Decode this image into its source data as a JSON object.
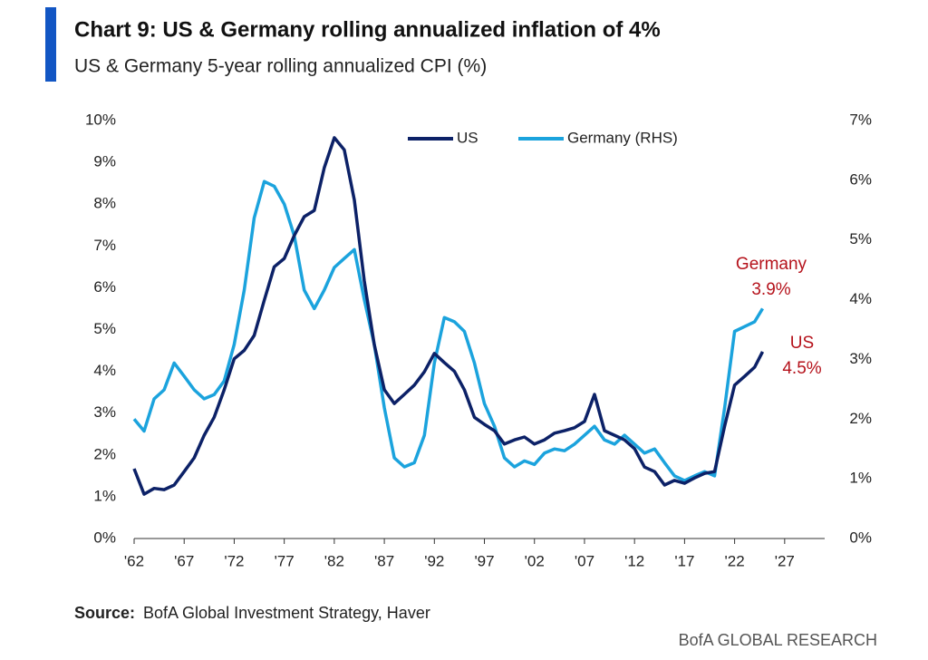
{
  "chart_data": {
    "type": "line",
    "title": "Chart 9: US & Germany rolling annualized inflation of 4%",
    "subtitle": "US & Germany 5-year rolling annualized CPI (%)",
    "source_label": "Source:",
    "source": "BofA Global Investment Strategy, Haver",
    "footer": "BofA GLOBAL RESEARCH",
    "x": [
      1962,
      1963,
      1964,
      1965,
      1966,
      1967,
      1968,
      1969,
      1970,
      1971,
      1972,
      1973,
      1974,
      1975,
      1976,
      1977,
      1978,
      1979,
      1980,
      1981,
      1982,
      1983,
      1984,
      1985,
      1986,
      1987,
      1988,
      1989,
      1990,
      1991,
      1992,
      1993,
      1994,
      1995,
      1996,
      1997,
      1998,
      1999,
      2000,
      2001,
      2002,
      2003,
      2004,
      2005,
      2006,
      2007,
      2008,
      2009,
      2010,
      2011,
      2012,
      2013,
      2014,
      2015,
      2016,
      2017,
      2018,
      2019,
      2020,
      2021,
      2022,
      2023,
      2024,
      2024.8
    ],
    "series": [
      {
        "name": "US",
        "color": "#0c2167",
        "axis": "y",
        "values": [
          1.67,
          1.06,
          1.2,
          1.17,
          1.28,
          1.6,
          1.93,
          2.47,
          2.9,
          3.56,
          4.3,
          4.5,
          4.86,
          5.7,
          6.5,
          6.7,
          7.25,
          7.7,
          7.85,
          8.87,
          9.59,
          9.3,
          8.1,
          6.16,
          4.64,
          3.56,
          3.23,
          3.45,
          3.67,
          3.99,
          4.43,
          4.21,
          4.0,
          3.56,
          2.9,
          2.73,
          2.58,
          2.26,
          2.36,
          2.43,
          2.26,
          2.36,
          2.52,
          2.58,
          2.65,
          2.8,
          3.45,
          2.58,
          2.47,
          2.36,
          2.15,
          1.71,
          1.6,
          1.28,
          1.39,
          1.32,
          1.45,
          1.56,
          1.6,
          2.69,
          3.67,
          3.88,
          4.1,
          4.47
        ]
      },
      {
        "name": "Germany (RHS)",
        "color": "#1ba3dd",
        "axis": "y2",
        "values": [
          2.0,
          1.8,
          2.34,
          2.49,
          2.94,
          2.72,
          2.49,
          2.34,
          2.41,
          2.64,
          3.25,
          4.16,
          5.37,
          5.98,
          5.9,
          5.6,
          5.07,
          4.16,
          3.85,
          4.16,
          4.54,
          4.69,
          4.84,
          4.0,
          3.25,
          2.19,
          1.35,
          1.2,
          1.27,
          1.73,
          2.94,
          3.7,
          3.63,
          3.47,
          2.94,
          2.26,
          1.88,
          1.35,
          1.2,
          1.3,
          1.24,
          1.43,
          1.5,
          1.47,
          1.58,
          1.73,
          1.88,
          1.65,
          1.58,
          1.73,
          1.58,
          1.43,
          1.5,
          1.27,
          1.05,
          0.97,
          1.05,
          1.12,
          1.05,
          2.19,
          3.47,
          3.55,
          3.63,
          3.85
        ]
      }
    ],
    "annotations": [
      {
        "lines": [
          "Germany",
          "3.9%"
        ],
        "color": "#b5121b"
      },
      {
        "lines": [
          "US",
          "4.5%"
        ],
        "color": "#b5121b"
      }
    ],
    "xlim": [
      1962,
      2031
    ],
    "xticks": [
      {
        "value": 1962,
        "label": "'62"
      },
      {
        "value": 1967,
        "label": "'67"
      },
      {
        "value": 1972,
        "label": "'72"
      },
      {
        "value": 1977,
        "label": "'77"
      },
      {
        "value": 1982,
        "label": "'82"
      },
      {
        "value": 1987,
        "label": "'87"
      },
      {
        "value": 1992,
        "label": "'92"
      },
      {
        "value": 1997,
        "label": "'97"
      },
      {
        "value": 2002,
        "label": "'02"
      },
      {
        "value": 2007,
        "label": "'07"
      },
      {
        "value": 2012,
        "label": "'12"
      },
      {
        "value": 2017,
        "label": "'17"
      },
      {
        "value": 2022,
        "label": "'22"
      },
      {
        "value": 2027,
        "label": "'27"
      }
    ],
    "ylim": [
      0,
      10
    ],
    "yticks": [
      {
        "value": 0,
        "label": "0%"
      },
      {
        "value": 1,
        "label": "1%"
      },
      {
        "value": 2,
        "label": "2%"
      },
      {
        "value": 3,
        "label": "3%"
      },
      {
        "value": 4,
        "label": "4%"
      },
      {
        "value": 5,
        "label": "5%"
      },
      {
        "value": 6,
        "label": "6%"
      },
      {
        "value": 7,
        "label": "7%"
      },
      {
        "value": 8,
        "label": "8%"
      },
      {
        "value": 9,
        "label": "9%"
      },
      {
        "value": 10,
        "label": "10%"
      }
    ],
    "y2lim": [
      0,
      7
    ],
    "y2ticks": [
      {
        "value": 0,
        "label": "0%"
      },
      {
        "value": 1,
        "label": "1%"
      },
      {
        "value": 2,
        "label": "2%"
      },
      {
        "value": 3,
        "label": "3%"
      },
      {
        "value": 4,
        "label": "4%"
      },
      {
        "value": 5,
        "label": "5%"
      },
      {
        "value": 6,
        "label": "6%"
      },
      {
        "value": 7,
        "label": "7%"
      }
    ],
    "grid": false
  }
}
